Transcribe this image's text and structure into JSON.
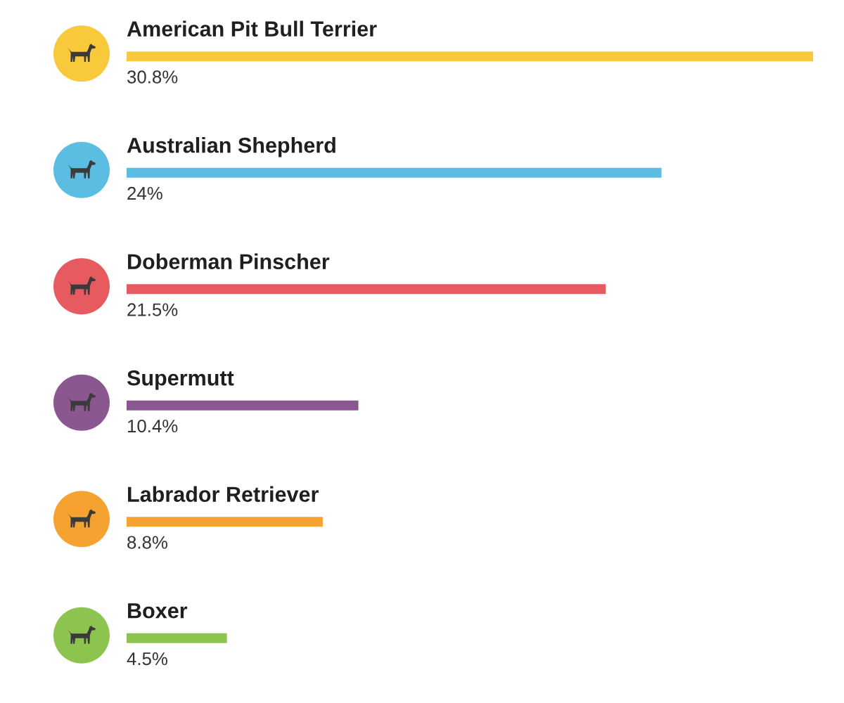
{
  "chart_data": {
    "type": "bar",
    "orientation": "horizontal",
    "categories": [
      "American Pit Bull Terrier",
      "Australian Shepherd",
      "Doberman Pinscher",
      "Supermutt",
      "Labrador Retriever",
      "Boxer"
    ],
    "values": [
      30.8,
      24,
      21.5,
      10.4,
      8.8,
      4.5
    ],
    "colors": [
      "#f9c93c",
      "#5bbde1",
      "#e65a60",
      "#8b5790",
      "#f6a230",
      "#8dc44f"
    ],
    "value_labels": [
      "30.8%",
      "24%",
      "21.5%",
      "10.4%",
      "8.8%",
      "4.5%"
    ]
  }
}
